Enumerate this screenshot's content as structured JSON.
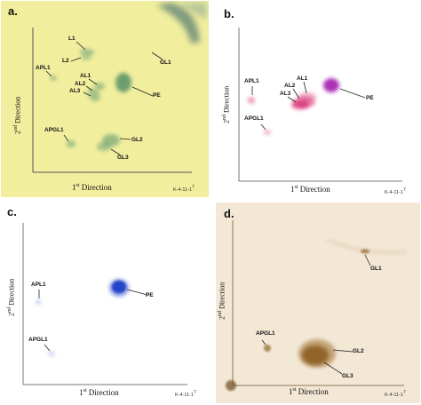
{
  "panels": [
    {
      "label": "a.",
      "x_direction": "1st Direction",
      "y_direction": "2nd Direction",
      "code": "K-4-11-1",
      "code_sup": "7",
      "bg": "#f1ee9e",
      "spots": [
        "L1",
        "L2",
        "APL1",
        "GL1",
        "AL1",
        "AL2",
        "AL3",
        "PE",
        "APGL1",
        "GL2",
        "GL3"
      ]
    },
    {
      "label": "b.",
      "x_direction": "1st Direction",
      "y_direction": "2nd Direction",
      "code": "K-4-11-1",
      "code_sup": "7",
      "bg": "#ffffff",
      "spots": [
        "APL1",
        "AL1",
        "AL2",
        "AL3",
        "PE",
        "APGL1"
      ]
    },
    {
      "label": "c.",
      "x_direction": "1st Direction",
      "y_direction": "2nd Direction",
      "code": "K-4-11-1",
      "code_sup": "7",
      "bg": "#ffffff",
      "spots": [
        "APL1",
        "PE",
        "APGL1"
      ]
    },
    {
      "label": "d.",
      "x_direction": "1st Direction",
      "y_direction": "2nd Direction",
      "code": "K-4-11-1",
      "code_sup": "7",
      "bg": "#f3e8d6",
      "spots": [
        "GL1",
        "APGL1",
        "GL2",
        "GL3"
      ]
    }
  ],
  "colors": {
    "panel_a_spot": "#5f9a72",
    "panel_b_spot": "#d6216a",
    "panel_b_pe": "#a21bb0",
    "panel_c_spot": "#1a3fc8",
    "panel_d_spot": "#8a6228"
  }
}
